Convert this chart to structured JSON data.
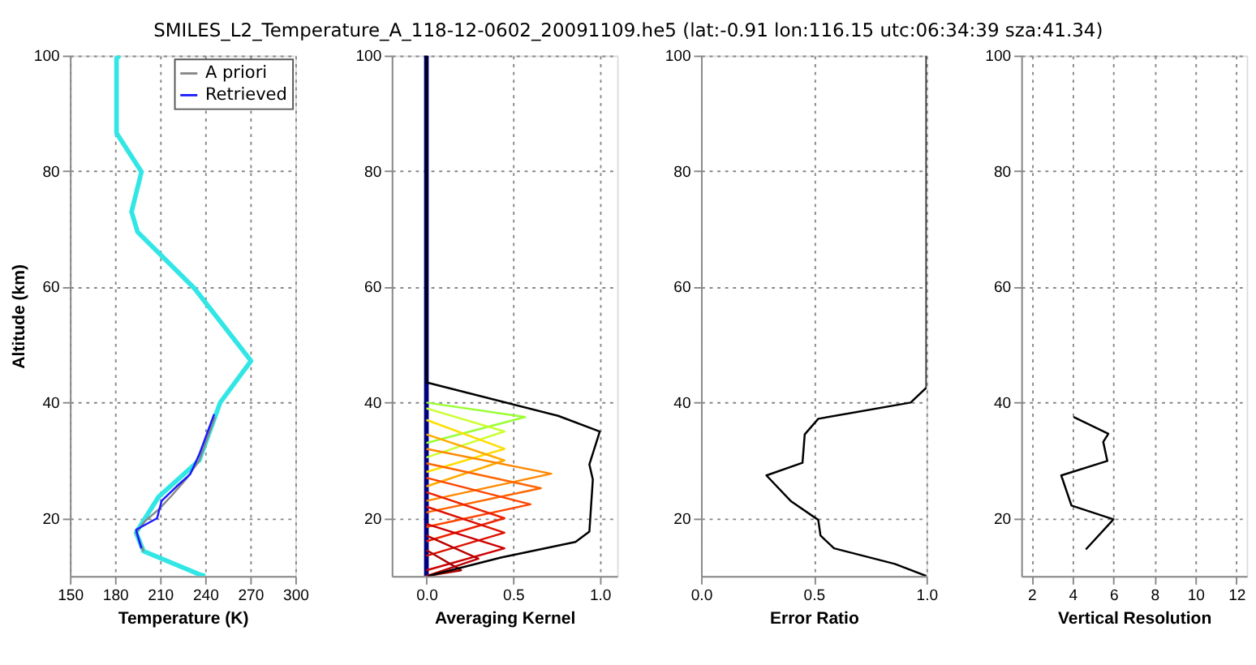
{
  "chart_data": [
    {
      "type": "line",
      "title": "SMILES_L2_Temperature_A_118-12-0602_20091109.he5 (lat:-0.91 lon:116.15 utc:06:34:39 sza:41.34)",
      "xlabel": "Temperature (K)",
      "ylabel": "Altitude (km)",
      "xlim": [
        150,
        300
      ],
      "xticks": [
        150,
        180,
        210,
        240,
        270,
        300
      ],
      "ylim": [
        10,
        100
      ],
      "yticks": [
        20,
        40,
        60,
        80,
        100
      ],
      "grid": true,
      "legend": "top right",
      "series": [
        {
          "color": "#33e6e6",
          "x": [
            183,
            181,
            181,
            197.6,
            191,
            195,
            233,
            270.5,
            250,
            246.5,
            236,
            209,
            194,
            199,
            237,
            240
          ],
          "values": [
            100,
            99.5,
            86.6,
            79.9,
            73,
            69.5,
            59.7,
            47.2,
            40,
            37.5,
            30,
            23.7,
            17.5,
            14.3,
            10.2,
            10
          ]
        },
        {
          "name": "A priori",
          "color": "#888888",
          "x": [
            246.5,
            236,
            228,
            218,
            209,
            200,
            194,
            199
          ],
          "values": [
            37.5,
            30,
            27,
            24,
            21.5,
            19.5,
            17.5,
            14.3
          ]
        },
        {
          "name": "Retrieved",
          "color": "#1a1aff",
          "x": [
            246,
            236,
            230,
            221,
            211,
            208,
            194,
            197.5
          ],
          "values": [
            38,
            31,
            27.6,
            25.5,
            23,
            20,
            18,
            14.8
          ]
        }
      ]
    },
    {
      "type": "line",
      "xlabel": "Averaging Kernel",
      "xlim": [
        -0.2,
        1.1
      ],
      "xticks": [
        {
          "value": 0,
          "label": "0.0"
        },
        {
          "value": 0.5,
          "label": "0.5"
        },
        {
          "value": 1,
          "label": "1.0"
        }
      ],
      "ylim": [
        10,
        100
      ],
      "yticks": [
        20,
        40,
        60,
        80,
        100
      ],
      "grid": true,
      "series": [
        {
          "color": "#00007f",
          "x": [
            0,
            0
          ],
          "values": [
            10,
            100
          ]
        },
        {
          "color": "#99ff33",
          "x": [
            0,
            0.57,
            0
          ],
          "values": [
            33,
            37.5,
            40
          ]
        },
        {
          "color": "#ccff33",
          "x": [
            0,
            0.45,
            0
          ],
          "values": [
            30.5,
            35,
            39
          ]
        },
        {
          "color": "#ffdd00",
          "x": [
            0,
            0.45,
            0
          ],
          "values": [
            28,
            32,
            37
          ]
        },
        {
          "color": "#ffaa00",
          "x": [
            0,
            0.45,
            0
          ],
          "values": [
            25.5,
            30,
            34.5
          ]
        },
        {
          "color": "#ff8800",
          "x": [
            0,
            0.72,
            0
          ],
          "values": [
            23,
            27.7,
            32
          ]
        },
        {
          "color": "#ff6600",
          "x": [
            0,
            0.66,
            0
          ],
          "values": [
            21,
            25.2,
            29.5
          ]
        },
        {
          "color": "#ff4400",
          "x": [
            0,
            0.6,
            0
          ],
          "values": [
            18.5,
            22.4,
            27
          ]
        },
        {
          "color": "#ee2200",
          "x": [
            0,
            0.45,
            0
          ],
          "values": [
            16,
            20,
            24.5
          ]
        },
        {
          "color": "#dd1100",
          "x": [
            0,
            0.45,
            0
          ],
          "values": [
            13.5,
            17.5,
            22
          ]
        },
        {
          "color": "#cc0000",
          "x": [
            0,
            0.45,
            0
          ],
          "values": [
            11,
            14.8,
            19
          ]
        },
        {
          "color": "#bb0000",
          "x": [
            0,
            0.3,
            0
          ],
          "values": [
            10,
            13,
            17
          ]
        },
        {
          "color": "#aa0000",
          "x": [
            0,
            0.2,
            0
          ],
          "values": [
            10,
            11,
            14.5
          ]
        },
        {
          "color": "#000000",
          "x": [
            0,
            0,
            0.76,
            1.0,
            0.94,
            0.96,
            0.94,
            0.86,
            0.43,
            0.01
          ],
          "values": [
            100,
            43.5,
            37.7,
            35,
            29.3,
            26.7,
            17.7,
            15.9,
            13.2,
            10
          ]
        }
      ]
    },
    {
      "type": "line",
      "xlabel": "Error Ratio",
      "xlim": [
        0,
        1
      ],
      "xticks": [
        {
          "value": 0,
          "label": "0.0"
        },
        {
          "value": 0.5,
          "label": "0.5"
        },
        {
          "value": 1,
          "label": "1.0"
        }
      ],
      "ylim": [
        10,
        100
      ],
      "yticks": [
        20,
        40,
        60,
        80,
        100
      ],
      "grid": true,
      "series": [
        {
          "color": "#000000",
          "x": [
            1.0,
            1.0,
            0.93,
            0.52,
            0.46,
            0.45,
            0.29,
            0.4,
            0.52,
            0.53,
            0.59,
            0.86,
            1.0
          ],
          "values": [
            100,
            42.6,
            40,
            37.2,
            34.5,
            29.6,
            27.4,
            22.9,
            19.7,
            17,
            14.8,
            12.1,
            10
          ]
        }
      ]
    },
    {
      "type": "line",
      "xlabel": "Vertical Resolution",
      "xlim": [
        1.5,
        12.5
      ],
      "xticks": [
        2,
        4,
        6,
        8,
        10,
        12
      ],
      "ylim": [
        10,
        100
      ],
      "yticks": [
        20,
        40,
        60,
        80,
        100
      ],
      "grid": true,
      "series": [
        {
          "color": "#000000",
          "x": [
            4.05,
            5.75,
            5.5,
            5.7,
            3.45,
            3.95,
            6.0,
            4.65
          ],
          "values": [
            37.5,
            34.6,
            33.2,
            29.9,
            27.4,
            22.2,
            19.8,
            14.6
          ]
        }
      ]
    }
  ]
}
